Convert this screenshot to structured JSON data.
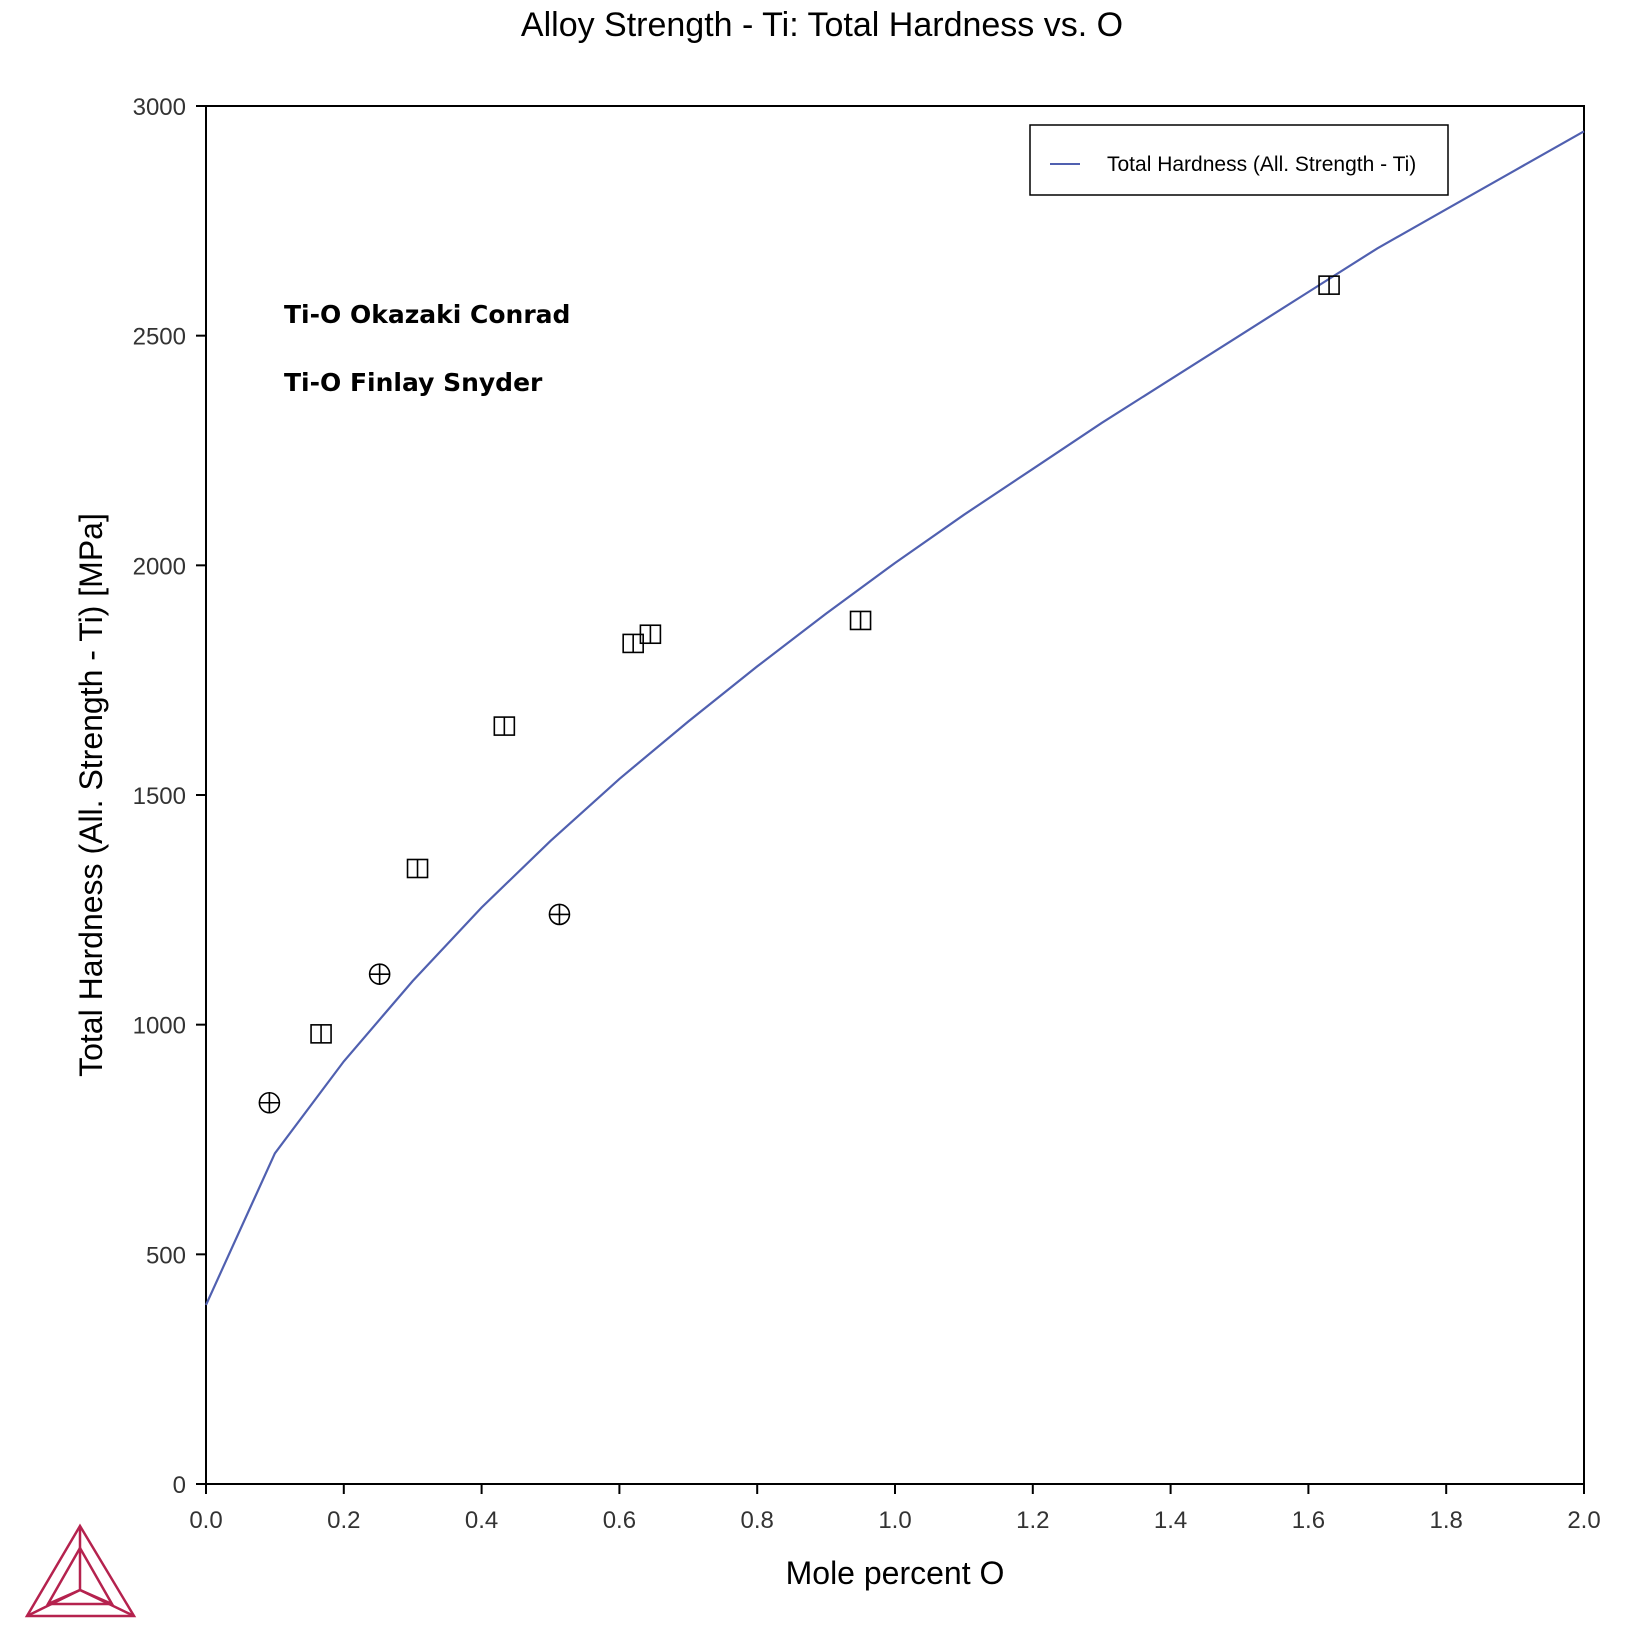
{
  "chart_data": {
    "type": "line",
    "title": "Alloy Strength - Ti: Total Hardness vs. O",
    "xlabel": "Mole percent O",
    "ylabel": "Total Hardness (All. Strength - Ti) [MPa]",
    "xlim": [
      0,
      2.0
    ],
    "ylim": [
      0,
      3000
    ],
    "xticks": [
      "0.0",
      "0.2",
      "0.4",
      "0.6",
      "0.8",
      "1.0",
      "1.2",
      "1.4",
      "1.6",
      "1.8",
      "2.0"
    ],
    "yticks": [
      "0",
      "500",
      "1000",
      "1500",
      "2000",
      "2500",
      "3000"
    ],
    "grid": false,
    "legend_position": "top-right",
    "series": [
      {
        "name": "Total Hardness (All. Strength - Ti)",
        "kind": "line",
        "color": "#5060b0",
        "x": [
          0.0,
          0.1,
          0.2,
          0.3,
          0.4,
          0.5,
          0.6,
          0.7,
          0.8,
          0.9,
          1.0,
          1.1,
          1.2,
          1.3,
          1.4,
          1.5,
          1.6,
          1.7,
          1.8,
          1.9,
          2.0
        ],
        "y": [
          390,
          720,
          920,
          1095,
          1255,
          1400,
          1535,
          1660,
          1780,
          1895,
          2005,
          2110,
          2210,
          2310,
          2405,
          2500,
          2595,
          2690,
          2775,
          2860,
          2945
        ]
      },
      {
        "name": "Ti-O Okazaki Conrad",
        "kind": "markers",
        "marker": "square",
        "x": [
          0.167,
          0.307,
          0.433,
          0.62,
          0.645,
          0.95,
          1.63
        ],
        "y": [
          980,
          1340,
          1650,
          1830,
          1850,
          1880,
          2610
        ]
      },
      {
        "name": "Ti-O Finlay Snyder",
        "kind": "markers",
        "marker": "circle-plus",
        "x": [
          0.092,
          0.252,
          0.513
        ],
        "y": [
          830,
          1110,
          1240
        ]
      }
    ],
    "annotations": [
      "Ti-O Okazaki Conrad",
      "Ti-O Finlay Snyder"
    ]
  },
  "logo": {
    "name": "thermo-calc-logo",
    "color": "#b5224e"
  }
}
